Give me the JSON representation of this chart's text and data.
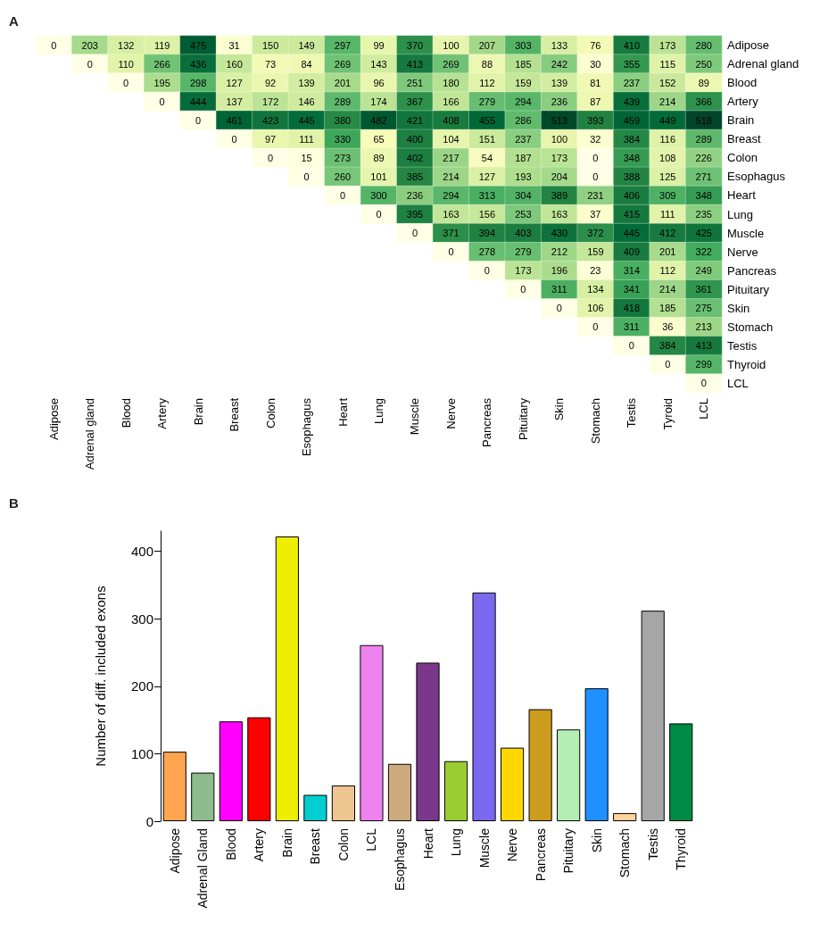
{
  "chart_data": [
    {
      "type": "heatmap",
      "annotations": [
        "A"
      ],
      "data_labels": true,
      "categories": [
        "Adipose",
        "Adrenal gland",
        "Blood",
        "Artery",
        "Brain",
        "Breast",
        "Colon",
        "Esophagus",
        "Heart",
        "Lung",
        "Muscle",
        "Nerve",
        "Pancreas",
        "Pituitary",
        "Skin",
        "Stomach",
        "Testis",
        "Tyroid",
        "LCL"
      ],
      "y_categories": [
        "Adipose",
        "Adrenal gland",
        "Blood",
        "Artery",
        "Brain",
        "Breast",
        "Colon",
        "Esophagus",
        "Heart",
        "Lung",
        "Muscle",
        "Nerve",
        "Pancreas",
        "Pituitary",
        "Skin",
        "Stomach",
        "Testis",
        "Thyroid",
        "LCL"
      ],
      "cells": [
        [
          0,
          203,
          132,
          119,
          475,
          31,
          150,
          149,
          297,
          99,
          370,
          100,
          207,
          303,
          133,
          76,
          410,
          173,
          280
        ],
        [
          null,
          0,
          110,
          266,
          436,
          160,
          73,
          84,
          269,
          143,
          413,
          269,
          88,
          185,
          242,
          30,
          355,
          115,
          250
        ],
        [
          null,
          null,
          0,
          195,
          298,
          127,
          92,
          139,
          201,
          96,
          251,
          180,
          112,
          159,
          139,
          81,
          237,
          152,
          89
        ],
        [
          null,
          null,
          null,
          0,
          444,
          137,
          172,
          146,
          289,
          174,
          367,
          166,
          279,
          294,
          236,
          87,
          439,
          214,
          366
        ],
        [
          null,
          null,
          null,
          null,
          0,
          461,
          423,
          445,
          380,
          482,
          421,
          408,
          455,
          286,
          513,
          393,
          459,
          449,
          518
        ],
        [
          null,
          null,
          null,
          null,
          null,
          0,
          97,
          111,
          330,
          65,
          400,
          104,
          151,
          237,
          100,
          32,
          384,
          116,
          289
        ],
        [
          null,
          null,
          null,
          null,
          null,
          null,
          0,
          15,
          273,
          89,
          402,
          217,
          54,
          187,
          173,
          0,
          348,
          108,
          226
        ],
        [
          null,
          null,
          null,
          null,
          null,
          null,
          null,
          0,
          260,
          101,
          385,
          214,
          127,
          193,
          204,
          0,
          388,
          125,
          271
        ],
        [
          null,
          null,
          null,
          null,
          null,
          null,
          null,
          null,
          0,
          300,
          236,
          294,
          313,
          304,
          389,
          231,
          406,
          309,
          348
        ],
        [
          null,
          null,
          null,
          null,
          null,
          null,
          null,
          null,
          null,
          0,
          395,
          163,
          156,
          253,
          163,
          37,
          415,
          111,
          235
        ],
        [
          null,
          null,
          null,
          null,
          null,
          null,
          null,
          null,
          null,
          null,
          0,
          371,
          394,
          403,
          430,
          372,
          445,
          412,
          425
        ],
        [
          null,
          null,
          null,
          null,
          null,
          null,
          null,
          null,
          null,
          null,
          null,
          0,
          278,
          279,
          212,
          159,
          409,
          201,
          322
        ],
        [
          null,
          null,
          null,
          null,
          null,
          null,
          null,
          null,
          null,
          null,
          null,
          null,
          0,
          173,
          196,
          23,
          314,
          112,
          249
        ],
        [
          null,
          null,
          null,
          null,
          null,
          null,
          null,
          null,
          null,
          null,
          null,
          null,
          null,
          0,
          311,
          134,
          341,
          214,
          361
        ],
        [
          null,
          null,
          null,
          null,
          null,
          null,
          null,
          null,
          null,
          null,
          null,
          null,
          null,
          null,
          0,
          106,
          418,
          185,
          275
        ],
        [
          null,
          null,
          null,
          null,
          null,
          null,
          null,
          null,
          null,
          null,
          null,
          null,
          null,
          null,
          null,
          0,
          311,
          36,
          213
        ],
        [
          null,
          null,
          null,
          null,
          null,
          null,
          null,
          null,
          null,
          null,
          null,
          null,
          null,
          null,
          null,
          null,
          0,
          384,
          413
        ],
        [
          null,
          null,
          null,
          null,
          null,
          null,
          null,
          null,
          null,
          null,
          null,
          null,
          null,
          null,
          null,
          null,
          null,
          0,
          299
        ],
        [
          null,
          null,
          null,
          null,
          null,
          null,
          null,
          null,
          null,
          null,
          null,
          null,
          null,
          null,
          null,
          null,
          null,
          null,
          0
        ]
      ]
    },
    {
      "type": "bar",
      "annotations": [
        "B"
      ],
      "ylabel": "Number of diff. included exons",
      "categories": [
        "Adipose",
        "Adrenal Gland",
        "Blood",
        "Artery",
        "Brain",
        "Breast",
        "Colon",
        "LCL",
        "Esophagus",
        "Heart",
        "Lung",
        "Muscle",
        "Nerve",
        "Pancreas",
        "Pituitary",
        "Skin",
        "Stomach",
        "Testis",
        "Thyroid"
      ],
      "values": [
        103,
        72,
        148,
        154,
        422,
        39,
        53,
        261,
        85,
        235,
        89,
        339,
        109,
        166,
        136,
        197,
        12,
        312,
        145
      ],
      "colors": [
        "#ffa54f",
        "#8fbc8f",
        "#ff00ff",
        "#ff0000",
        "#eeee00",
        "#00ced1",
        "#eec591",
        "#ee82ee",
        "#cdaa7d",
        "#7a378b",
        "#9acd32",
        "#7b68ee",
        "#ffd700",
        "#cd9b1d",
        "#b4eeb4",
        "#1e90ff",
        "#ffd39b",
        "#a6a6a6",
        "#008b45"
      ],
      "ylim": [
        0,
        430
      ],
      "yticks": [
        0,
        100,
        200,
        300,
        400
      ]
    }
  ]
}
